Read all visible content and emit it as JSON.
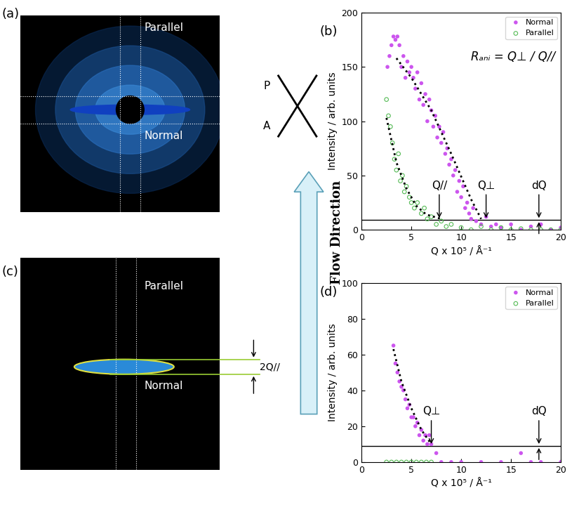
{
  "images": [
    {
      "label": "(a)",
      "parallel": "Parallel",
      "normal": "Normal"
    },
    {
      "label": "(c)",
      "parallel": "Parallel",
      "normal": "Normal",
      "width_mark": "2Q//"
    }
  ],
  "polarizer": {
    "p": "P",
    "a": "A"
  },
  "flow": {
    "label": "Flow Direction"
  },
  "chart_data": [
    {
      "type": "scatter",
      "label": "(b)",
      "x_label": "Q x 10⁵ / Å⁻¹",
      "y_label": "Intensity / arb. units",
      "formula": "Rₐₙᵢ = Q⊥ / Q//",
      "xlim": [
        0,
        20
      ],
      "xticks": [
        0,
        5,
        10,
        15,
        20
      ],
      "ylim": [
        0,
        200
      ],
      "yticks": [
        0,
        50,
        100,
        150,
        200
      ],
      "legend": "upper right",
      "series": [
        {
          "name": "Normal",
          "color": "#cc55ee",
          "marker": "filled_circle",
          "x": [
            2.6,
            2.8,
            3.0,
            3.2,
            3.4,
            3.6,
            3.8,
            4.0,
            4.2,
            4.4,
            4.6,
            4.8,
            5.0,
            5.2,
            5.4,
            5.6,
            5.8,
            6.0,
            6.2,
            6.4,
            6.6,
            6.8,
            7.0,
            7.2,
            7.4,
            7.6,
            7.8,
            8.0,
            8.2,
            8.4,
            8.6,
            8.8,
            9.0,
            9.2,
            9.4,
            9.6,
            9.8,
            10.0,
            10.2,
            10.4,
            10.6,
            10.8,
            11.0,
            11.2,
            11.5,
            12.0,
            12.5,
            13.0,
            13.5,
            14.0,
            15.0,
            16.0,
            17.0,
            18.0,
            19.0,
            20.0
          ],
          "values": [
            150,
            160,
            170,
            178,
            175,
            178,
            170,
            150,
            160,
            140,
            155,
            145,
            150,
            140,
            130,
            145,
            120,
            135,
            115,
            125,
            100,
            120,
            110,
            95,
            105,
            85,
            95,
            80,
            90,
            70,
            75,
            60,
            65,
            50,
            55,
            35,
            45,
            30,
            40,
            20,
            25,
            15,
            10,
            20,
            8,
            5,
            12,
            3,
            5,
            2,
            5,
            0,
            3,
            5,
            0,
            2
          ]
        },
        {
          "name": "Parallel",
          "color": "#55bb55",
          "marker": "open_circle",
          "x": [
            2.5,
            2.7,
            2.9,
            3.1,
            3.3,
            3.5,
            3.7,
            3.9,
            4.1,
            4.3,
            4.5,
            4.8,
            5.0,
            5.3,
            5.6,
            6.0,
            6.3,
            6.6,
            7.0,
            7.5,
            8.0,
            8.5,
            9.0,
            10.0,
            11.0,
            12.0,
            13.0,
            14.0,
            15.0,
            16.0,
            17.0,
            18.0,
            19.0,
            20.0
          ],
          "values": [
            120,
            105,
            95,
            80,
            65,
            55,
            70,
            45,
            50,
            35,
            40,
            30,
            25,
            20,
            25,
            15,
            20,
            10,
            12,
            5,
            8,
            3,
            5,
            2,
            0,
            3,
            0,
            2,
            0,
            1,
            0,
            0,
            0,
            0
          ]
        }
      ],
      "fits": [
        {
          "line_style": "dotted",
          "x": [
            3.5,
            5.0,
            7.0,
            9.0,
            11.0,
            12.0
          ],
          "values": [
            158,
            140,
            110,
            70,
            28,
            10
          ]
        },
        {
          "line_style": "dotted",
          "x": [
            2.5,
            3.5,
            4.5,
            5.5,
            6.5,
            8.0
          ],
          "values": [
            103,
            62,
            38,
            22,
            14,
            10
          ]
        }
      ],
      "threshold": 9,
      "annotations": [
        {
          "text": "Q//",
          "x": 7.8
        },
        {
          "text": "Q⊥",
          "x": 12.5
        },
        {
          "text": "dQ",
          "x": 17.8,
          "from_below": true
        }
      ]
    },
    {
      "type": "scatter",
      "label": "(d)",
      "x_label": "Q x 10⁵ / Å⁻¹",
      "y_label": "Intensity / arb. units",
      "xlim": [
        0,
        20
      ],
      "xticks": [
        0,
        5,
        10,
        15,
        20
      ],
      "ylim": [
        0,
        100
      ],
      "yticks": [
        0,
        20,
        40,
        60,
        80,
        100
      ],
      "legend": "upper right",
      "series": [
        {
          "name": "Normal",
          "color": "#cc55ee",
          "marker": "filled_circle",
          "x": [
            3.2,
            3.4,
            3.6,
            3.8,
            4.0,
            4.2,
            4.4,
            4.6,
            4.8,
            5.0,
            5.2,
            5.4,
            5.6,
            5.8,
            6.0,
            6.2,
            6.4,
            6.6,
            6.8,
            7.0,
            7.5,
            8.0,
            9.0,
            10.0,
            12.0,
            14.0,
            16.0,
            17.0,
            18.0,
            20.0
          ],
          "values": [
            65,
            55,
            50,
            45,
            42,
            40,
            35,
            30,
            32,
            25,
            25,
            20,
            22,
            15,
            18,
            12,
            15,
            10,
            15,
            10,
            5,
            0,
            0,
            0,
            0,
            0,
            5,
            0,
            0,
            0
          ]
        },
        {
          "name": "Parallel",
          "color": "#55bb55",
          "marker": "open_circle",
          "x": [
            2.5,
            3.0,
            3.5,
            4.0,
            4.5,
            5.0,
            5.5,
            6.0,
            6.5,
            7.0
          ],
          "values": [
            0,
            0,
            0,
            0,
            0,
            0,
            0,
            0,
            0,
            0
          ]
        }
      ],
      "fits": [
        {
          "line_style": "dotted",
          "x": [
            3.2,
            4.0,
            5.0,
            6.0,
            7.0
          ],
          "values": [
            63,
            45,
            30,
            18,
            10
          ]
        }
      ],
      "threshold": 9,
      "annotations": [
        {
          "text": "Q⊥",
          "x": 7.0
        },
        {
          "text": "dQ",
          "x": 17.8,
          "from_below": true
        }
      ]
    }
  ]
}
